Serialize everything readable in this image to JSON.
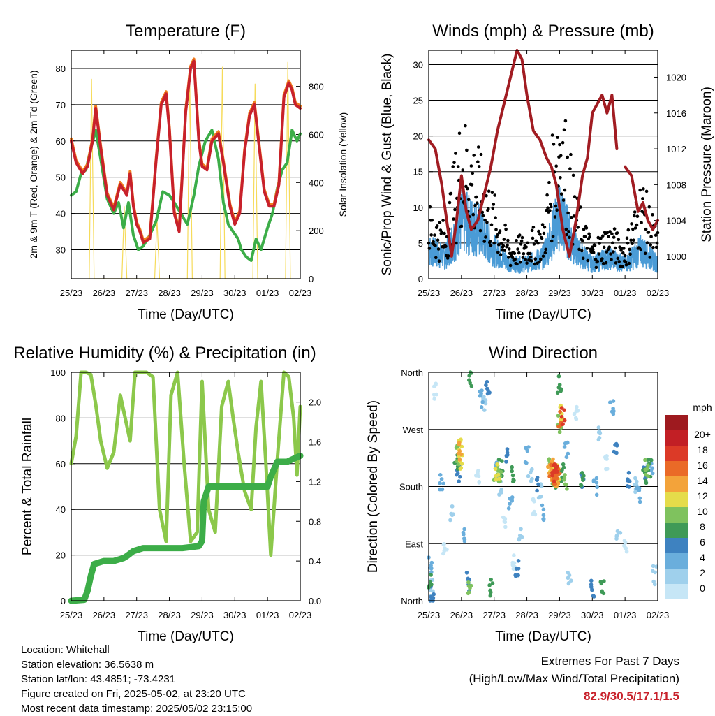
{
  "colors": {
    "temp_2m": "#c8212b",
    "temp_9m": "#f07d1e",
    "dewpoint": "#3cad48",
    "insolation": "#f6db5a",
    "wind": "#4a9bd6",
    "gust": "#000000",
    "pressure": "#a11c22",
    "rh": "#8cc84b",
    "precip": "#3cad48",
    "extremes": "#c8212b"
  },
  "x_ticks": [
    "25/23",
    "26/23",
    "27/23",
    "28/23",
    "29/23",
    "30/23",
    "01/23",
    "02/23"
  ],
  "panels": {
    "temperature": {
      "title": "Temperature (F)",
      "xlabel": "Time (Day/UTC)",
      "ylabel_left": "2m & 9m T (Red, Orange) & 2m Td (Green)",
      "ylabel_right": "Solar Insolation (Yellow)",
      "yticks_left": [
        "30",
        "40",
        "50",
        "60",
        "70",
        "80"
      ],
      "yticks_right": [
        "0",
        "200",
        "400",
        "600",
        "800"
      ]
    },
    "winds": {
      "title": "Winds (mph) & Pressure (mb)",
      "xlabel": "Time (Day/UTC)",
      "ylabel_left": "Sonic/Prop Wind & Gust (Blue, Black)",
      "ylabel_right": "Station Pressure (Maroon)",
      "yticks_left": [
        "0",
        "5",
        "10",
        "15",
        "20",
        "25",
        "30"
      ],
      "yticks_right": [
        "1000",
        "1004",
        "1008",
        "1012",
        "1016",
        "1020"
      ]
    },
    "humidity": {
      "title": "Relative Humidity (%) & Precipitation (in)",
      "xlabel": "Time (Day/UTC)",
      "ylabel_left": "Percent & Total Rainfall",
      "yticks_left": [
        "0",
        "20",
        "40",
        "60",
        "80",
        "100"
      ],
      "yticks_right": [
        "0.0",
        "0.4",
        "0.8",
        "1.2",
        "1.6",
        "2.0"
      ]
    },
    "direction": {
      "title": "Wind Direction",
      "xlabel": "Time (Day/UTC)",
      "ylabel_left": "Direction (Colored By Speed)",
      "yticks_left": [
        "North",
        "East",
        "South",
        "West",
        "North"
      ],
      "legend_title": "mph",
      "legend_labels": [
        "0",
        "2",
        "4",
        "6",
        "8",
        "10",
        "12",
        "14",
        "16",
        "18",
        "20+"
      ],
      "legend_colors": [
        "#c6e6f6",
        "#9fd0ec",
        "#6aaedc",
        "#3e82c0",
        "#3f9a57",
        "#7fc25e",
        "#e5dc4a",
        "#f3a33a",
        "#ea6a27",
        "#dc3a27",
        "#c21f25",
        "#9e1a1f"
      ]
    }
  },
  "info": {
    "location": "Location: Whitehall",
    "elevation": "Station elevation: 36.5638 m",
    "latlon": "Station lat/lon: 43.4851; -73.4231",
    "created": "Figure created on Fri, 2025-05-02, at 23:20 UTC",
    "recent": "Most recent data timestamp: 2025/05/02 23:15:00"
  },
  "extremes": {
    "heading": "Extremes For Past 7 Days",
    "subheading": "(High/Low/Max Wind/Total Precipitation)",
    "values": "82.9/30.5/17.1/1.5"
  },
  "chart_data": [
    {
      "type": "line",
      "title": "Temperature (F)",
      "xlabel": "Time (Day/UTC)",
      "ylabel": "2m & 9m T (Red, Orange) & 2m Td (Green)",
      "ylabel_right": "Solar Insolation (Yellow)",
      "x_range_days": [
        0,
        7
      ],
      "ylim": [
        22,
        85
      ],
      "ylim_right": [
        0,
        950
      ],
      "series": [
        {
          "color": "#c8212b",
          "x": [
            0,
            0.15,
            0.35,
            0.5,
            0.65,
            0.75,
            0.9,
            1.1,
            1.3,
            1.5,
            1.7,
            1.8,
            1.9,
            2.0,
            2.1,
            2.2,
            2.4,
            2.6,
            2.75,
            2.9,
            3.0,
            3.15,
            3.3,
            3.5,
            3.65,
            3.75,
            3.9,
            4.0,
            4.15,
            4.3,
            4.5,
            4.65,
            4.85,
            5.0,
            5.15,
            5.3,
            5.45,
            5.6,
            5.75,
            5.9,
            6.05,
            6.2,
            6.35,
            6.5,
            6.65,
            6.75,
            6.85,
            7.0
          ],
          "y": [
            60,
            54,
            51,
            53,
            60,
            69,
            58,
            45,
            41,
            48,
            45,
            51,
            42,
            37,
            35,
            32,
            33,
            55,
            70,
            73,
            63,
            40,
            35,
            68,
            80,
            82,
            60,
            53,
            52,
            60,
            62,
            54,
            42,
            37,
            40,
            57,
            67,
            70,
            58,
            46,
            42,
            42,
            48,
            72,
            76,
            74,
            70,
            69
          ]
        },
        {
          "color": "#3cad48",
          "x": [
            0,
            0.15,
            0.3,
            0.45,
            0.6,
            0.75,
            0.9,
            1.1,
            1.3,
            1.45,
            1.6,
            1.75,
            1.9,
            2.05,
            2.2,
            2.4,
            2.6,
            2.8,
            3.0,
            3.15,
            3.35,
            3.55,
            3.75,
            3.9,
            4.1,
            4.3,
            4.5,
            4.65,
            4.8,
            4.95,
            5.1,
            5.2,
            5.35,
            5.5,
            5.65,
            5.8,
            6.0,
            6.15,
            6.3,
            6.45,
            6.6,
            6.75,
            6.9,
            7.0
          ],
          "y": [
            45,
            46,
            51,
            52,
            58,
            63,
            55,
            44,
            40,
            43,
            36,
            43,
            34,
            30,
            31,
            34,
            38,
            46,
            45,
            43,
            40,
            37,
            45,
            53,
            60,
            63,
            55,
            43,
            37,
            35,
            33,
            30,
            28,
            27,
            33,
            30,
            36,
            40,
            47,
            52,
            54,
            63,
            60,
            62
          ]
        },
        {
          "color": "#f6db5a",
          "axis": "right",
          "x": [
            0.55,
            0.62,
            0.7,
            1.55,
            1.62,
            1.7,
            2.55,
            2.62,
            2.7,
            3.55,
            3.62,
            3.7,
            4.55,
            4.62,
            4.7,
            5.55,
            5.62,
            5.7,
            6.55,
            6.62,
            6.7
          ],
          "y": [
            0,
            830,
            0,
            0,
            300,
            0,
            0,
            250,
            0,
            0,
            860,
            0,
            0,
            880,
            0,
            0,
            810,
            0,
            0,
            900,
            0
          ]
        }
      ]
    },
    {
      "type": "line",
      "title": "Winds (mph) & Pressure (mb)",
      "xlabel": "Time (Day/UTC)",
      "ylabel": "Sonic/Prop Wind & Gust (Blue, Black)",
      "ylabel_right": "Station Pressure (Maroon)",
      "x_range_days": [
        0,
        7
      ],
      "ylim": [
        0,
        32
      ],
      "ylim_right": [
        997.5,
        1023
      ],
      "series": [
        {
          "color": "#a11c22",
          "axis": "right",
          "x": [
            0,
            0.2,
            0.4,
            0.55,
            0.7,
            0.85,
            1.0,
            1.15,
            1.3,
            1.5,
            1.7,
            1.9,
            2.1,
            2.3,
            2.5,
            2.7,
            2.85,
            3.0,
            3.2,
            3.4,
            3.6,
            3.75,
            3.9,
            4.1,
            4.3,
            4.5,
            4.7,
            4.85,
            5.0,
            5.15,
            5.3,
            5.45,
            5.6,
            5.75
          ],
          "y": [
            1013,
            1012,
            1008,
            1004,
            1000,
            1004,
            1009,
            1005,
            1003,
            1004,
            1007,
            1010,
            1014,
            1017,
            1020,
            1023,
            1022,
            1018,
            1014,
            1013,
            1011,
            1010,
            1008,
            1003,
            1000,
            1004,
            1009,
            1011,
            1016,
            1017,
            1018,
            1016,
            1018,
            1012
          ]
        },
        {
          "color": "#a11c22",
          "axis": "right",
          "x": [
            6.0,
            6.2,
            6.4,
            6.55,
            6.7,
            6.85,
            7.0
          ],
          "y": [
            1010,
            1009,
            1005,
            1006,
            1004,
            1003,
            1004
          ]
        },
        {
          "color": "#4a9bd6",
          "x": [
            0,
            0.5,
            1.0,
            1.5,
            2.0,
            2.5,
            3.0,
            3.5,
            4.0,
            4.5,
            5.0,
            5.5,
            6.0,
            6.5,
            7.0
          ],
          "y": [
            4,
            3,
            8,
            7,
            4,
            2,
            2,
            3,
            9,
            4,
            2,
            3,
            2,
            4,
            2
          ]
        },
        {
          "color": "#000000",
          "x": [
            0,
            0.5,
            1.0,
            1.5,
            2.0,
            2.5,
            3.0,
            3.5,
            4.0,
            4.5,
            5.0,
            5.5,
            6.0,
            6.5,
            7.0
          ],
          "y": [
            8,
            6,
            18,
            14,
            9,
            4,
            5,
            6,
            22,
            9,
            4,
            6,
            4,
            11,
            5
          ]
        }
      ]
    },
    {
      "type": "line",
      "title": "Relative Humidity (%) & Precipitation (in)",
      "xlabel": "Time (Day/UTC)",
      "ylabel": "Percent & Total Rainfall",
      "x_range_days": [
        0,
        7
      ],
      "ylim": [
        0,
        100
      ],
      "ylim_right": [
        0,
        2.3
      ],
      "series": [
        {
          "color": "#8cc84b",
          "x": [
            0,
            0.15,
            0.3,
            0.45,
            0.6,
            0.75,
            0.9,
            1.1,
            1.3,
            1.5,
            1.65,
            1.8,
            1.95,
            2.1,
            2.3,
            2.5,
            2.7,
            2.9,
            3.05,
            3.25,
            3.45,
            3.65,
            3.85,
            4.0,
            4.2,
            4.4,
            4.6,
            4.8,
            4.95,
            5.1,
            5.3,
            5.5,
            5.65,
            5.8,
            5.95,
            6.1,
            6.3,
            6.5,
            6.65,
            6.8,
            6.9,
            7.0
          ],
          "y": [
            60,
            72,
            100,
            100,
            99,
            86,
            70,
            58,
            65,
            90,
            80,
            70,
            100,
            100,
            100,
            98,
            40,
            26,
            90,
            100,
            60,
            26,
            30,
            96,
            40,
            30,
            85,
            96,
            80,
            65,
            48,
            40,
            76,
            96,
            60,
            20,
            62,
            100,
            98,
            80,
            55,
            85
          ]
        },
        {
          "color": "#3cad48",
          "axis": "right",
          "x": [
            0,
            0.4,
            0.5,
            0.6,
            0.7,
            1.0,
            1.3,
            1.6,
            1.7,
            1.9,
            2.2,
            2.5,
            3.0,
            3.4,
            3.9,
            4.0,
            4.05,
            4.2,
            4.5,
            5.0,
            5.6,
            6.0,
            6.1,
            6.3,
            6.6,
            7.0
          ],
          "y": [
            0,
            0.01,
            0.1,
            0.25,
            0.37,
            0.4,
            0.4,
            0.43,
            0.45,
            0.5,
            0.53,
            0.53,
            0.53,
            0.53,
            0.55,
            0.6,
            1.0,
            1.15,
            1.15,
            1.15,
            1.15,
            1.15,
            1.25,
            1.4,
            1.4,
            1.46
          ]
        }
      ]
    },
    {
      "type": "scatter",
      "title": "Wind Direction",
      "xlabel": "Time (Day/UTC)",
      "ylabel": "Direction (Colored By Speed)",
      "x_range_days": [
        0,
        7
      ],
      "ylim": [
        0,
        360
      ],
      "yticks": [
        "North",
        "East",
        "South",
        "West",
        "North"
      ],
      "legend_title": "mph",
      "series": [
        {
          "name": "0",
          "x": [
            0.2,
            0.5,
            1.5,
            2.3,
            2.6,
            3.2,
            4.5,
            5.4,
            6.0,
            6.7
          ],
          "y": [
            330,
            80,
            200,
            120,
            60,
            150,
            300,
            220,
            90,
            200
          ]
        },
        {
          "name": "2",
          "x": [
            0.1,
            0.7,
            1.7,
            2.2,
            2.8,
            3.1,
            3.4,
            4.3,
            5.2,
            5.8,
            6.3,
            6.9
          ],
          "y": [
            20,
            140,
            310,
            180,
            110,
            200,
            170,
            40,
            260,
            110,
            180,
            40
          ]
        },
        {
          "name": "4",
          "x": [
            0.05,
            0.4,
            1.1,
            1.6,
            2.1,
            2.5,
            3.0,
            3.5,
            4.2,
            5.1,
            5.6,
            6.4,
            6.8
          ],
          "y": [
            60,
            190,
            100,
            320,
            210,
            160,
            230,
            140,
            240,
            180,
            300,
            170,
            210
          ]
        },
        {
          "name": "6",
          "x": [
            0.1,
            0.9,
            1.2,
            1.8,
            2.4,
            2.7,
            3.3,
            4.7,
            5.0,
            5.7,
            6.1,
            6.6
          ],
          "y": [
            10,
            200,
            30,
            340,
            230,
            50,
            180,
            190,
            20,
            240,
            190,
            200
          ]
        },
        {
          "name": "8",
          "x": [
            0.05,
            0.85,
            1.25,
            1.9,
            2.2,
            2.6,
            3.9,
            4.0,
            4.1,
            4.7,
            5.3,
            6.6,
            6.75
          ],
          "y": [
            30,
            220,
            350,
            20,
            210,
            200,
            190,
            340,
            200,
            190,
            20,
            200,
            210
          ]
        },
        {
          "name": "10",
          "x": [
            0.9,
            1.25,
            2.05,
            2.15,
            3.7,
            3.8,
            4.0,
            4.2,
            6.65
          ],
          "y": [
            230,
            20,
            200,
            195,
            210,
            190,
            280,
            190,
            210
          ]
        },
        {
          "name": "12",
          "x": [
            0.95,
            1.0,
            2.1,
            3.75,
            3.85,
            3.95,
            4.05
          ],
          "y": [
            240,
            220,
            205,
            205,
            195,
            200,
            295
          ]
        },
        {
          "name": "14",
          "x": [
            0.95,
            3.7,
            3.8,
            3.9
          ],
          "y": [
            235,
            200,
            210,
            195
          ]
        },
        {
          "name": "16",
          "x": [
            3.75,
            3.85,
            3.95,
            4.0
          ],
          "y": [
            205,
            195,
            205,
            285
          ]
        },
        {
          "name": "18",
          "x": [
            3.8,
            3.9,
            4.1
          ],
          "y": [
            200,
            210,
            290
          ]
        }
      ]
    }
  ]
}
